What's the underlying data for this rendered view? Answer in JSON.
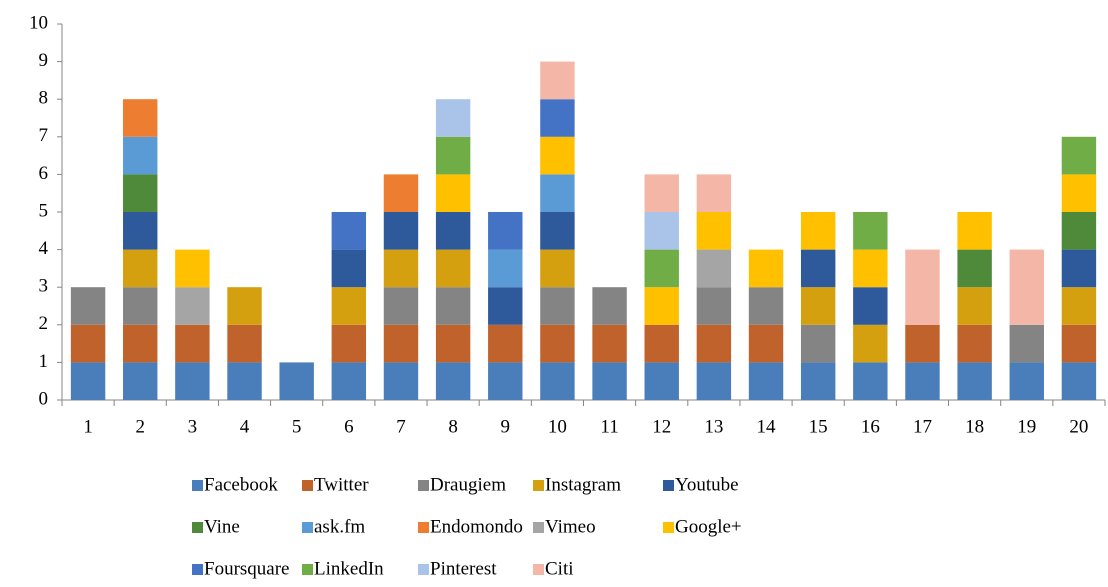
{
  "chart_data": {
    "type": "stacked_bar",
    "categories": [
      "1",
      "2",
      "3",
      "4",
      "5",
      "6",
      "7",
      "8",
      "9",
      "10",
      "11",
      "12",
      "13",
      "14",
      "15",
      "16",
      "17",
      "18",
      "19",
      "20"
    ],
    "series": [
      {
        "name": "Facebook",
        "color": "#4a7ebb",
        "values": [
          1,
          1,
          1,
          1,
          1,
          1,
          1,
          1,
          1,
          1,
          1,
          1,
          1,
          1,
          1,
          1,
          1,
          1,
          1,
          1
        ]
      },
      {
        "name": "Twitter",
        "color": "#c0622b",
        "values": [
          1,
          1,
          1,
          1,
          0,
          1,
          1,
          1,
          1,
          1,
          1,
          1,
          1,
          1,
          0,
          0,
          1,
          1,
          0,
          1
        ]
      },
      {
        "name": "Draugiem",
        "color": "#848484",
        "values": [
          1,
          1,
          0,
          0,
          0,
          0,
          1,
          1,
          0,
          1,
          1,
          0,
          1,
          1,
          1,
          0,
          0,
          0,
          1,
          0
        ]
      },
      {
        "name": "Instagram",
        "color": "#d4a010",
        "values": [
          0,
          1,
          0,
          1,
          0,
          1,
          1,
          1,
          0,
          1,
          0,
          0,
          0,
          0,
          1,
          1,
          0,
          1,
          0,
          1
        ]
      },
      {
        "name": "Youtube",
        "color": "#2e5a9c",
        "values": [
          0,
          1,
          0,
          0,
          0,
          1,
          1,
          1,
          1,
          1,
          0,
          0,
          0,
          0,
          1,
          1,
          0,
          0,
          0,
          1
        ]
      },
      {
        "name": "Vine",
        "color": "#4e8a3a",
        "values": [
          0,
          1,
          0,
          0,
          0,
          0,
          0,
          0,
          0,
          0,
          0,
          0,
          0,
          0,
          0,
          0,
          0,
          1,
          0,
          1
        ]
      },
      {
        "name": "ask.fm",
        "color": "#5b9bd5",
        "values": [
          0,
          1,
          0,
          0,
          0,
          0,
          0,
          0,
          1,
          1,
          0,
          0,
          0,
          0,
          0,
          0,
          0,
          0,
          0,
          0
        ]
      },
      {
        "name": "Endomondo",
        "color": "#ed7d31",
        "values": [
          0,
          1,
          0,
          0,
          0,
          0,
          1,
          0,
          0,
          0,
          0,
          0,
          0,
          0,
          0,
          0,
          0,
          0,
          0,
          0
        ]
      },
      {
        "name": "Vimeo",
        "color": "#a5a5a5",
        "values": [
          0,
          0,
          1,
          0,
          0,
          0,
          0,
          0,
          0,
          0,
          0,
          0,
          1,
          0,
          0,
          0,
          0,
          0,
          0,
          0
        ]
      },
      {
        "name": "Google+",
        "color": "#ffc000",
        "values": [
          0,
          0,
          1,
          0,
          0,
          0,
          0,
          1,
          0,
          1,
          0,
          1,
          1,
          1,
          1,
          1,
          0,
          1,
          0,
          1
        ]
      },
      {
        "name": "Foursquare",
        "color": "#4472c4",
        "values": [
          0,
          0,
          0,
          0,
          0,
          1,
          0,
          0,
          1,
          1,
          0,
          0,
          0,
          0,
          0,
          0,
          0,
          0,
          0,
          0
        ]
      },
      {
        "name": "LinkedIn",
        "color": "#70ad47",
        "values": [
          0,
          0,
          0,
          0,
          0,
          0,
          0,
          1,
          0,
          0,
          0,
          1,
          0,
          0,
          0,
          1,
          0,
          0,
          0,
          1
        ]
      },
      {
        "name": "Pinterest",
        "color": "#a9c4e8",
        "values": [
          0,
          0,
          0,
          0,
          0,
          0,
          0,
          1,
          0,
          0,
          0,
          1,
          0,
          0,
          0,
          0,
          0,
          0,
          0,
          0
        ]
      },
      {
        "name": "Citi",
        "color": "#f4b6a6",
        "values": [
          0,
          0,
          0,
          0,
          0,
          0,
          0,
          0,
          0,
          1,
          0,
          1,
          1,
          0,
          0,
          0,
          2,
          0,
          2,
          0
        ]
      }
    ],
    "ylim": [
      0,
      10
    ],
    "yticks": [
      0,
      1,
      2,
      3,
      4,
      5,
      6,
      7,
      8,
      9,
      10
    ],
    "grid": false,
    "legend": "bottom"
  }
}
